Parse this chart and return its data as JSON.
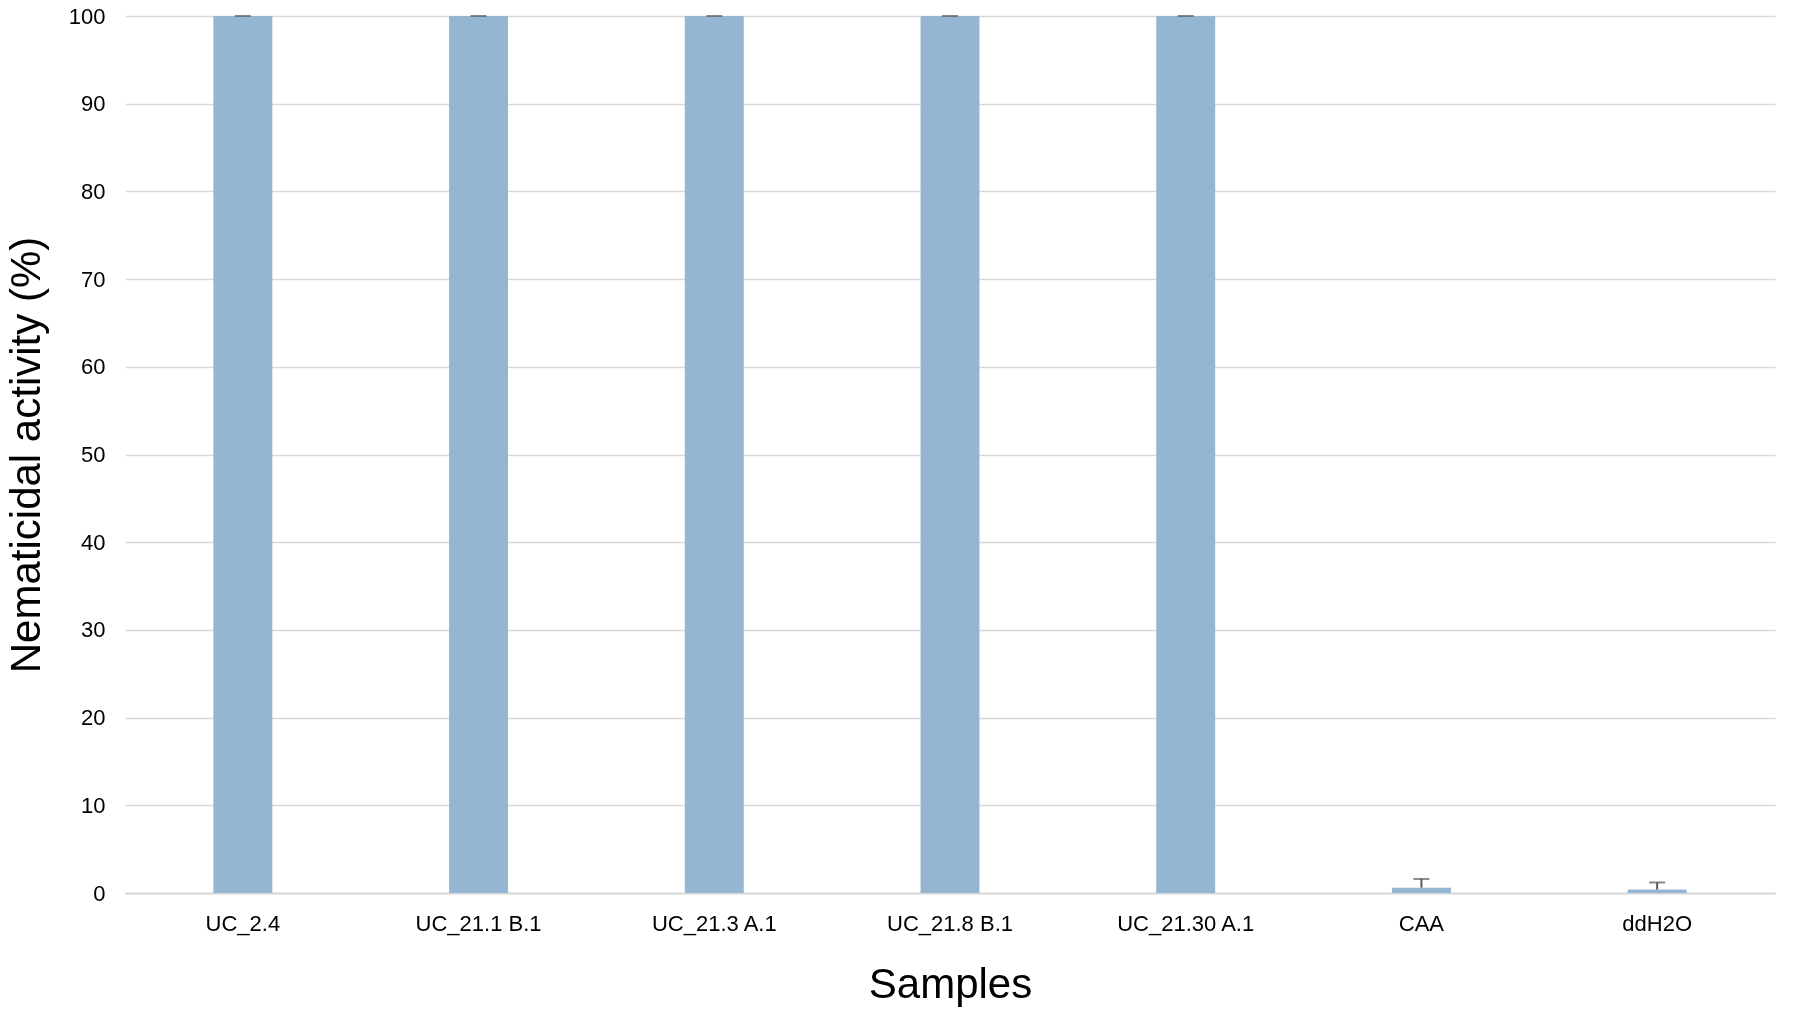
{
  "chart_data": {
    "type": "bar",
    "xlabel": "Samples",
    "ylabel": "Nematicidal activity (%)",
    "categories": [
      "UC_2.4",
      "UC_21.1 B.1",
      "UC_21.3 A.1",
      "UC_21.8 B.1",
      "UC_21.30 A.1",
      "CAA",
      "ddH2O"
    ],
    "values": [
      100,
      100,
      100,
      100,
      100,
      0.6,
      0.4
    ],
    "errors": [
      [
        100,
        100
      ],
      [
        100,
        100
      ],
      [
        100,
        100
      ],
      [
        100,
        100
      ],
      [
        100,
        100
      ],
      [
        0.6,
        1.6
      ],
      [
        0.4,
        1.2
      ]
    ],
    "color": "#95b6d3",
    "ylim": [
      0,
      100
    ],
    "yticks": [
      0,
      10,
      20,
      30,
      40,
      50,
      60,
      70,
      80,
      90,
      100
    ],
    "grid": "y"
  }
}
